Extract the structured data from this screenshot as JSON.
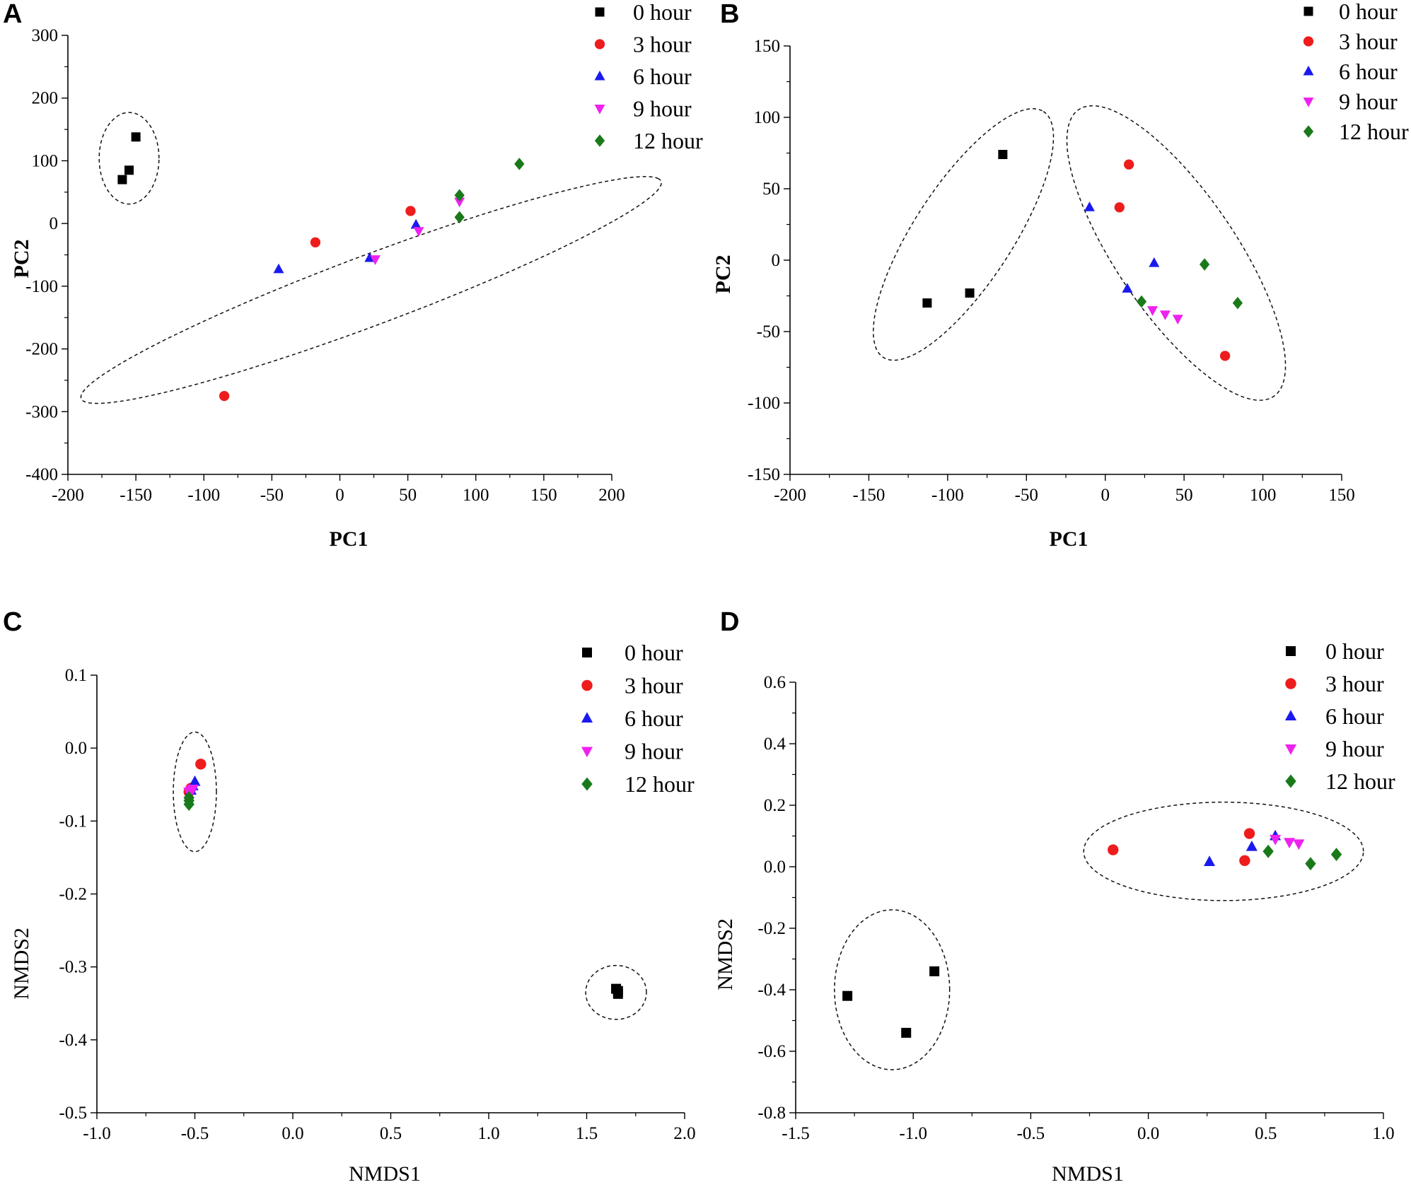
{
  "colors": {
    "0 hour": "#000000",
    "3 hour": "#ee1c1c",
    "6 hour": "#1a1aee",
    "9 hour": "#ee22ee",
    "12 hour": "#1a7a1a"
  },
  "legend": [
    {
      "label": "0 hour",
      "marker": "square",
      "color": "#000000"
    },
    {
      "label": "3 hour",
      "marker": "circle",
      "color": "#ee1c1c"
    },
    {
      "label": "6 hour",
      "marker": "triangle-up",
      "color": "#1a1aee"
    },
    {
      "label": "9 hour",
      "marker": "triangle-down",
      "color": "#ee22ee"
    },
    {
      "label": "12 hour",
      "marker": "diamond",
      "color": "#1a7a1a"
    }
  ],
  "chart_data": [
    {
      "panel": "A",
      "type": "scatter",
      "xlabel": "PC1",
      "ylabel": "PC2",
      "xlim": [
        -200,
        200
      ],
      "ylim": [
        -400,
        300
      ],
      "xticks": [
        "-200",
        "-150",
        "-100",
        "-50",
        "0",
        "50",
        "100",
        "150",
        "200"
      ],
      "yticks": [
        "-400",
        "-300",
        "-200",
        "-100",
        "0",
        "100",
        "200",
        "300"
      ],
      "legend_position": "top-right",
      "series": [
        {
          "name": "0 hour",
          "points": [
            [
              -150,
              138
            ],
            [
              -155,
              85
            ],
            [
              -160,
              70
            ]
          ]
        },
        {
          "name": "3 hour",
          "points": [
            [
              -18,
              -30
            ],
            [
              52,
              20
            ],
            [
              -85,
              -275
            ]
          ]
        },
        {
          "name": "6 hour",
          "points": [
            [
              -45,
              -73
            ],
            [
              22,
              -55
            ],
            [
              56,
              -2
            ]
          ]
        },
        {
          "name": "9 hour",
          "points": [
            [
              26,
              -57
            ],
            [
              58,
              -12
            ],
            [
              88,
              35
            ]
          ]
        },
        {
          "name": "12 hour",
          "points": [
            [
              132,
              95
            ],
            [
              88,
              45
            ],
            [
              88,
              10
            ]
          ]
        }
      ],
      "ellipses": [
        {
          "cx": -155,
          "cy": 104,
          "rx": 22,
          "ry": 73,
          "angle": 0
        },
        {
          "cx": 23,
          "cy": -106,
          "rx": 276,
          "ry": 46,
          "angle": 40
        }
      ]
    },
    {
      "panel": "B",
      "type": "scatter",
      "xlabel": "PC1",
      "ylabel": "PC2",
      "xlim": [
        -200,
        150
      ],
      "ylim": [
        -150,
        150
      ],
      "xticks": [
        "-200",
        "-150",
        "-100",
        "-50",
        "0",
        "50",
        "100",
        "150"
      ],
      "yticks": [
        "-150",
        "-100",
        "-50",
        "0",
        "50",
        "100",
        "150"
      ],
      "legend_position": "top-right",
      "series": [
        {
          "name": "0 hour",
          "points": [
            [
              -65,
              74
            ],
            [
              -113,
              -30
            ],
            [
              -86,
              -23
            ]
          ]
        },
        {
          "name": "3 hour",
          "points": [
            [
              15,
              67
            ],
            [
              9,
              37
            ],
            [
              76,
              -67
            ]
          ]
        },
        {
          "name": "6 hour",
          "points": [
            [
              -10,
              37
            ],
            [
              31,
              -2
            ],
            [
              14,
              -20
            ]
          ]
        },
        {
          "name": "9 hour",
          "points": [
            [
              30,
              -35
            ],
            [
              38,
              -38
            ],
            [
              46,
              -41
            ]
          ]
        },
        {
          "name": "12 hour",
          "points": [
            [
              63,
              -3
            ],
            [
              23,
              -29
            ],
            [
              84,
              -30
            ]
          ]
        }
      ],
      "ellipses": [
        {
          "cx": -90,
          "cy": 18,
          "rx": 100,
          "ry": 32,
          "angle": 60
        },
        {
          "cx": 45,
          "cy": 5,
          "rx": 118,
          "ry": 39,
          "angle": -59
        }
      ]
    },
    {
      "panel": "C",
      "type": "scatter",
      "xlabel": "NMDS1",
      "ylabel": "NMDS2",
      "xlim": [
        -1.0,
        2.0
      ],
      "ylim": [
        -0.5,
        0.1
      ],
      "xticks": [
        "-1.0",
        "-0.5",
        "0.0",
        "0.5",
        "1.0",
        "1.5",
        "2.0"
      ],
      "yticks": [
        "-0.5",
        "-0.4",
        "-0.3",
        "-0.2",
        "-0.1",
        "0.0",
        "0.1"
      ],
      "legend_position": "top-right",
      "series": [
        {
          "name": "0 hour",
          "points": [
            [
              1.65,
              -0.33
            ],
            [
              1.66,
              -0.333
            ],
            [
              1.66,
              -0.337
            ]
          ]
        },
        {
          "name": "3 hour",
          "points": [
            [
              -0.47,
              -0.022
            ],
            [
              -0.52,
              -0.055
            ],
            [
              -0.53,
              -0.06
            ]
          ]
        },
        {
          "name": "6 hour",
          "points": [
            [
              -0.5,
              -0.046
            ],
            [
              -0.51,
              -0.052
            ],
            [
              -0.52,
              -0.058
            ]
          ]
        },
        {
          "name": "9 hour",
          "points": [
            [
              -0.52,
              -0.058
            ],
            [
              -0.53,
              -0.06
            ],
            [
              -0.51,
              -0.056
            ]
          ]
        },
        {
          "name": "12 hour",
          "points": [
            [
              -0.53,
              -0.068
            ],
            [
              -0.53,
              -0.072
            ],
            [
              -0.53,
              -0.077
            ]
          ]
        }
      ],
      "ellipses": [
        {
          "cx": -0.5,
          "cy": -0.06,
          "rx": 0.11,
          "ry": 0.082,
          "angle": 0
        },
        {
          "cx": 1.65,
          "cy": -0.335,
          "rx": 0.155,
          "ry": 0.037,
          "angle": 0
        }
      ]
    },
    {
      "panel": "D",
      "type": "scatter",
      "xlabel": "NMDS1",
      "ylabel": "NMDS2",
      "xlim": [
        -1.5,
        1.0
      ],
      "ylim": [
        -0.8,
        0.6
      ],
      "xticks": [
        "-1.5",
        "-1.0",
        "-0.5",
        "0.0",
        "0.5",
        "1.0"
      ],
      "yticks": [
        "-0.8",
        "-0.6",
        "-0.4",
        "-0.2",
        "0.0",
        "0.2",
        "0.4",
        "0.6"
      ],
      "legend_position": "top-right",
      "series": [
        {
          "name": "0 hour",
          "points": [
            [
              -1.28,
              -0.42
            ],
            [
              -1.03,
              -0.54
            ],
            [
              -0.91,
              -0.34
            ]
          ]
        },
        {
          "name": "3 hour",
          "points": [
            [
              -0.15,
              0.055
            ],
            [
              0.43,
              0.108
            ],
            [
              0.41,
              0.02
            ]
          ]
        },
        {
          "name": "6 hour",
          "points": [
            [
              0.26,
              0.016
            ],
            [
              0.44,
              0.065
            ],
            [
              0.54,
              0.1
            ]
          ]
        },
        {
          "name": "9 hour",
          "points": [
            [
              0.54,
              0.09
            ],
            [
              0.6,
              0.08
            ],
            [
              0.64,
              0.075
            ]
          ]
        },
        {
          "name": "12 hour",
          "points": [
            [
              0.51,
              0.05
            ],
            [
              0.69,
              0.01
            ],
            [
              0.8,
              0.04
            ]
          ]
        }
      ],
      "ellipses": [
        {
          "cx": -1.09,
          "cy": -0.4,
          "rx": 0.245,
          "ry": 0.26,
          "angle": 0
        },
        {
          "cx": 0.32,
          "cy": 0.05,
          "rx": 0.595,
          "ry": 0.16,
          "angle": 0
        }
      ]
    }
  ]
}
